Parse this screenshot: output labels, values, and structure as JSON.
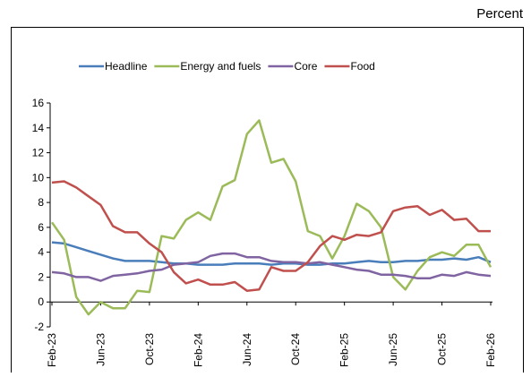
{
  "chart_data": {
    "type": "line",
    "y_label": "Percent",
    "categories": [
      "Feb-23",
      null,
      null,
      null,
      "Jun-23",
      null,
      null,
      null,
      "Oct-23",
      null,
      null,
      null,
      "Feb-24",
      null,
      null,
      null,
      "Jun-24",
      null,
      null,
      null,
      "Oct-24",
      null,
      null,
      null,
      "Feb-25",
      null,
      null,
      null,
      "Jun-25",
      null,
      null,
      null,
      "Oct-25",
      null,
      null,
      null,
      "Feb-26"
    ],
    "series": [
      {
        "name": "Headline",
        "color": "#4a7ebb",
        "values": [
          4.8,
          4.7,
          4.4,
          4.1,
          3.8,
          3.5,
          3.3,
          3.3,
          3.3,
          3.2,
          3.1,
          3.1,
          3.0,
          3.0,
          3.0,
          3.1,
          3.1,
          3.1,
          3.0,
          3.1,
          3.1,
          3.0,
          3.0,
          3.1,
          3.1,
          3.2,
          3.3,
          3.2,
          3.2,
          3.3,
          3.3,
          3.4,
          3.4,
          3.5,
          3.4,
          3.6,
          3.2
        ]
      },
      {
        "name": "Energy and fuels",
        "color": "#9bbb59",
        "values": [
          6.4,
          5.0,
          0.4,
          -1.0,
          0.0,
          -0.5,
          -0.5,
          0.9,
          0.8,
          5.3,
          5.1,
          6.6,
          7.2,
          6.6,
          9.3,
          9.8,
          13.5,
          14.6,
          11.2,
          11.5,
          9.7,
          5.7,
          5.3,
          3.5,
          5.3,
          7.9,
          7.3,
          6.0,
          2.0,
          1.0,
          2.5,
          3.6,
          4.0,
          3.7,
          4.6,
          4.6,
          2.8
        ]
      },
      {
        "name": "Core",
        "color": "#8064a2",
        "values": [
          2.4,
          2.3,
          2.0,
          2.0,
          1.7,
          2.1,
          2.2,
          2.3,
          2.5,
          2.6,
          3.0,
          3.1,
          3.2,
          3.7,
          3.9,
          3.9,
          3.6,
          3.6,
          3.3,
          3.2,
          3.2,
          3.1,
          3.2,
          3.0,
          2.8,
          2.6,
          2.5,
          2.2,
          2.2,
          2.1,
          1.9,
          1.9,
          2.2,
          2.1,
          2.4,
          2.2,
          2.1
        ]
      },
      {
        "name": "Food",
        "color": "#c0504d",
        "values": [
          9.6,
          9.7,
          9.2,
          8.5,
          7.8,
          6.1,
          5.6,
          5.6,
          4.7,
          4.0,
          2.4,
          1.5,
          1.8,
          1.4,
          1.4,
          1.6,
          0.9,
          1.0,
          2.8,
          2.5,
          2.5,
          3.2,
          4.5,
          5.3,
          5.0,
          5.4,
          5.3,
          5.6,
          7.3,
          7.6,
          7.7,
          7.0,
          7.4,
          6.6,
          6.7,
          5.7,
          5.7
        ]
      }
    ],
    "ylim": [
      -2,
      16
    ],
    "yticks": [
      -2,
      0,
      2,
      4,
      6,
      8,
      10,
      12,
      14,
      16
    ],
    "grid": false,
    "legend": "top"
  }
}
